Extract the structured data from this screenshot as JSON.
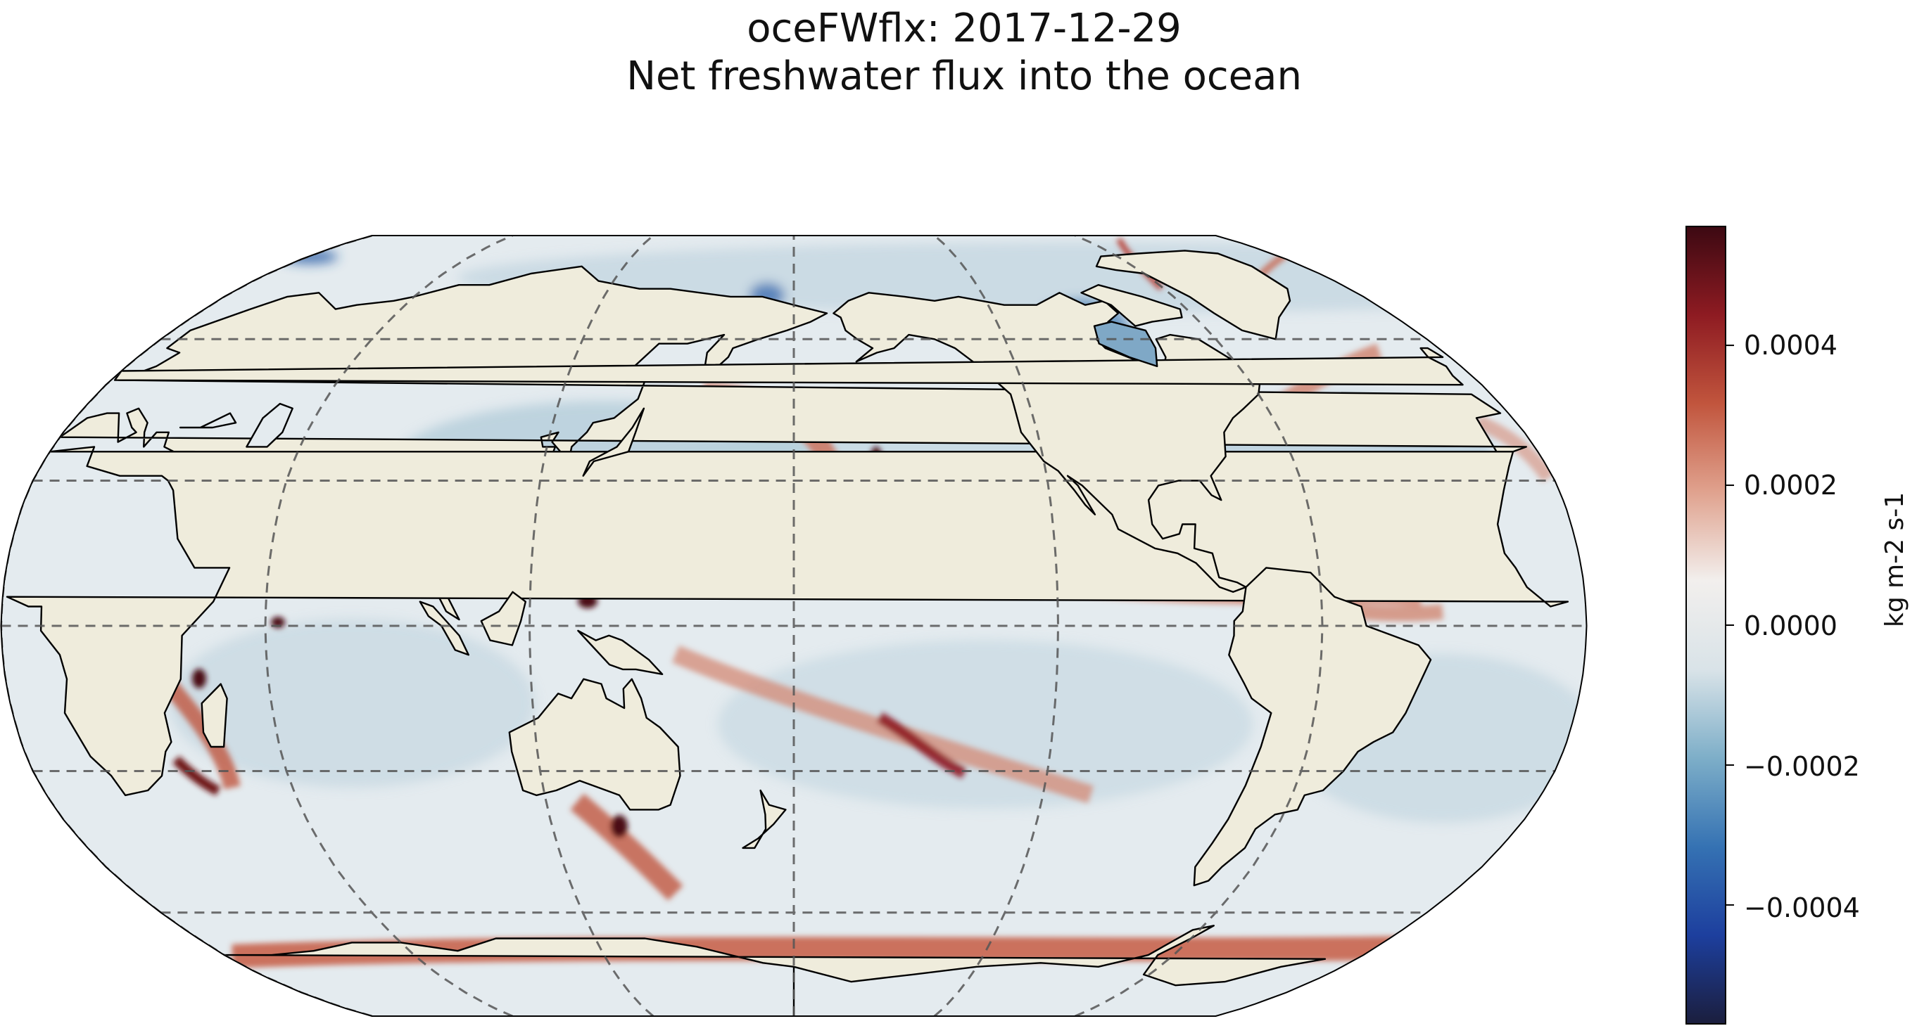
{
  "figure": {
    "title": "oceFWflx: 2017-12-29",
    "subtitle": "Net freshwater flux into the ocean"
  },
  "map": {
    "projection": "Robinson",
    "central_longitude": 180,
    "land_color": "#efecdc",
    "coastline_color": "#000000",
    "gridline_style": "dashed",
    "gridline_color": "#555555",
    "parallels_deg": [
      -60,
      -30,
      0,
      30,
      60
    ],
    "meridians_deg": [
      -120,
      -60,
      0,
      60,
      120,
      180
    ],
    "field_name": "oceFWflx",
    "positive_regions": [
      "ITCZ",
      "SPCZ",
      "Southern Ocean near Antarctica",
      "North Pacific storm track",
      "North Atlantic storm track"
    ],
    "negative_regions": [
      "subtropical gyres",
      "Arctic",
      "Hudson Bay"
    ]
  },
  "colorbar": {
    "label": "kg m-2 s-1",
    "colormap": "balance",
    "vmin": -0.00057,
    "vmax": 0.00057,
    "ticks": [
      {
        "value": 0.0004,
        "label": "0.0004"
      },
      {
        "value": 0.0002,
        "label": "0.0002"
      },
      {
        "value": 0.0,
        "label": "0.0000"
      },
      {
        "value": -0.0002,
        "label": "−0.0002"
      },
      {
        "value": -0.0004,
        "label": "−0.0004"
      }
    ],
    "color_stops": [
      "#1b1e3d",
      "#1d3f9e",
      "#3572b3",
      "#7daec8",
      "#d9e3e8",
      "#f2efed",
      "#e0a28e",
      "#c1553d",
      "#8e1b22",
      "#3c0912"
    ]
  }
}
